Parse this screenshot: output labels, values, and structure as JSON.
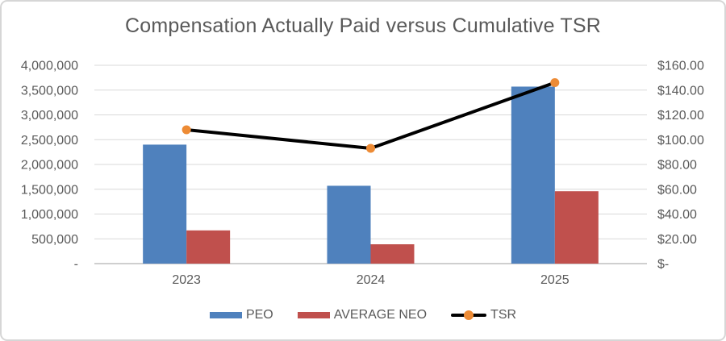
{
  "chart_data": {
    "type": "combo-bar-line",
    "title": "Compensation Actually Paid versus Cumulative TSR",
    "categories": [
      "2023",
      "2024",
      "2025"
    ],
    "series": [
      {
        "name": "PEO",
        "type": "bar",
        "axis": "left",
        "color": "#4F81BD",
        "values": [
          2400000,
          1570000,
          3570000
        ]
      },
      {
        "name": "AVERAGE NEO",
        "type": "bar",
        "axis": "left",
        "color": "#C0504D",
        "values": [
          670000,
          390000,
          1460000
        ]
      },
      {
        "name": "TSR",
        "type": "line",
        "axis": "right",
        "color": "#000000",
        "marker_color": "#ED8B35",
        "values": [
          108,
          93,
          146
        ]
      }
    ],
    "left_axis": {
      "min": 0,
      "max": 4000000,
      "step": 500000,
      "tick_labels": [
        "-",
        "500,000",
        "1,000,000",
        "1,500,000",
        "2,000,000",
        "2,500,000",
        "3,000,000",
        "3,500,000",
        "4,000,000"
      ]
    },
    "right_axis": {
      "min": 0,
      "max": 160,
      "step": 20,
      "tick_labels": [
        "$-",
        "$20.00",
        "$40.00",
        "$60.00",
        "$80.00",
        "$100.00",
        "$120.00",
        "$140.00",
        "$160.00"
      ]
    },
    "grid": true,
    "legend_position": "bottom",
    "colors": {
      "gridline": "#D9D9D9",
      "axis_line": "#BFBFBF",
      "text": "#595959",
      "background": "#FFFFFF"
    }
  }
}
